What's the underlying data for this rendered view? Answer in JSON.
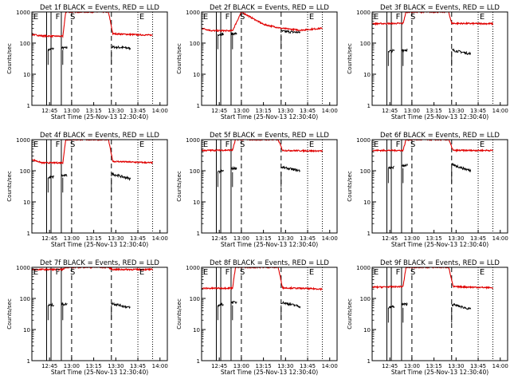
{
  "figure": {
    "x_ticks": [
      "12:45",
      "13:00",
      "13:15",
      "13:30",
      "13:45",
      "14:00"
    ],
    "y_ticks": [
      "1",
      "10",
      "100",
      "1000"
    ],
    "xlabel": "Start Time (25-Nov-13 12:30:40)",
    "ylabel": "Counts/sec",
    "marker_letters": [
      "E",
      "F",
      "S",
      "E"
    ]
  },
  "chart_data": [
    {
      "type": "line",
      "title": "Det 1f BLACK = Events, RED = LLD",
      "xlabel": "Start Time (25-Nov-13 12:30:40)",
      "ylabel": "Counts/sec",
      "ylim": [
        1,
        1000
      ],
      "yscale": "log",
      "x_ticks": [
        "12:45",
        "13:00",
        "13:15",
        "13:30",
        "13:45",
        "14:00"
      ],
      "series": [
        {
          "name": "Events",
          "color": "#000000",
          "values": [
            {
              "t": "12:44",
              "y": 60
            },
            {
              "t": "12:46",
              "y": 65
            },
            {
              "t": "12:54",
              "y": 70
            },
            {
              "t": "13:27",
              "y": 75
            },
            {
              "t": "13:35",
              "y": 72
            },
            {
              "t": "13:40",
              "y": 68
            }
          ]
        },
        {
          "name": "LLD",
          "color": "#e00000",
          "values": [
            {
              "t": "12:33",
              "y": 190
            },
            {
              "t": "12:40",
              "y": 170
            },
            {
              "t": "12:54",
              "y": 165
            },
            {
              "t": "12:56",
              "y": 1000
            },
            {
              "t": "13:25",
              "y": 1000
            },
            {
              "t": "13:28",
              "y": 200
            },
            {
              "t": "13:45",
              "y": 185
            },
            {
              "t": "13:55",
              "y": 180
            }
          ]
        }
      ]
    },
    {
      "type": "line",
      "title": "Det 2f BLACK = Events, RED = LLD",
      "xlabel": "Start Time (25-Nov-13 12:30:40)",
      "ylabel": "Counts/sec",
      "ylim": [
        1,
        1000
      ],
      "yscale": "log",
      "x_ticks": [
        "12:45",
        "13:00",
        "13:15",
        "13:30",
        "13:45",
        "14:00"
      ],
      "series": [
        {
          "name": "Events",
          "color": "#000000",
          "values": [
            {
              "t": "12:44",
              "y": 190
            },
            {
              "t": "12:54",
              "y": 200
            },
            {
              "t": "13:27",
              "y": 240
            },
            {
              "t": "13:40",
              "y": 220
            }
          ]
        },
        {
          "name": "LLD",
          "color": "#e00000",
          "values": [
            {
              "t": "12:33",
              "y": 300
            },
            {
              "t": "12:40",
              "y": 250
            },
            {
              "t": "12:54",
              "y": 250
            },
            {
              "t": "13:00",
              "y": 1000
            },
            {
              "t": "13:15",
              "y": 400
            },
            {
              "t": "13:27",
              "y": 300
            },
            {
              "t": "13:40",
              "y": 260
            },
            {
              "t": "13:55",
              "y": 300
            }
          ]
        }
      ]
    },
    {
      "type": "line",
      "title": "Det 3f BLACK = Events, RED = LLD",
      "xlabel": "Start Time (25-Nov-13 12:30:40)",
      "ylabel": "Counts/sec",
      "ylim": [
        1,
        1000
      ],
      "yscale": "log",
      "x_ticks": [
        "12:45",
        "13:00",
        "13:15",
        "13:30",
        "13:45",
        "14:00"
      ],
      "series": [
        {
          "name": "Events",
          "color": "#000000",
          "values": [
            {
              "t": "12:44",
              "y": 55
            },
            {
              "t": "12:54",
              "y": 60
            },
            {
              "t": "13:27",
              "y": 60
            },
            {
              "t": "13:40",
              "y": 45
            }
          ]
        },
        {
          "name": "LLD",
          "color": "#e00000",
          "values": [
            {
              "t": "12:33",
              "y": 420
            },
            {
              "t": "12:54",
              "y": 430
            },
            {
              "t": "12:56",
              "y": 1000
            },
            {
              "t": "13:25",
              "y": 1000
            },
            {
              "t": "13:27",
              "y": 430
            },
            {
              "t": "13:55",
              "y": 420
            }
          ]
        }
      ]
    },
    {
      "type": "line",
      "title": "Det 4f BLACK = Events, RED = LLD",
      "xlabel": "Start Time (25-Nov-13 12:30:40)",
      "ylabel": "Counts/sec",
      "ylim": [
        1,
        1000
      ],
      "yscale": "log",
      "x_ticks": [
        "12:45",
        "13:00",
        "13:15",
        "13:30",
        "13:45",
        "14:00"
      ],
      "series": [
        {
          "name": "Events",
          "color": "#000000",
          "values": [
            {
              "t": "12:44",
              "y": 60
            },
            {
              "t": "12:54",
              "y": 70
            },
            {
              "t": "13:27",
              "y": 80
            },
            {
              "t": "13:40",
              "y": 55
            }
          ]
        },
        {
          "name": "LLD",
          "color": "#e00000",
          "values": [
            {
              "t": "12:33",
              "y": 230
            },
            {
              "t": "12:40",
              "y": 180
            },
            {
              "t": "12:54",
              "y": 180
            },
            {
              "t": "12:56",
              "y": 1000
            },
            {
              "t": "13:25",
              "y": 1000
            },
            {
              "t": "13:28",
              "y": 200
            },
            {
              "t": "13:55",
              "y": 180
            }
          ]
        }
      ]
    },
    {
      "type": "line",
      "title": "Det 5f BLACK = Events, RED = LLD",
      "xlabel": "Start Time (25-Nov-13 12:30:40)",
      "ylabel": "Counts/sec",
      "ylim": [
        1,
        1000
      ],
      "yscale": "log",
      "x_ticks": [
        "12:45",
        "13:00",
        "13:15",
        "13:30",
        "13:45",
        "14:00"
      ],
      "series": [
        {
          "name": "Events",
          "color": "#000000",
          "values": [
            {
              "t": "12:44",
              "y": 90
            },
            {
              "t": "12:54",
              "y": 120
            },
            {
              "t": "13:27",
              "y": 130
            },
            {
              "t": "13:40",
              "y": 100
            }
          ]
        },
        {
          "name": "LLD",
          "color": "#e00000",
          "values": [
            {
              "t": "12:33",
              "y": 450
            },
            {
              "t": "12:54",
              "y": 460
            },
            {
              "t": "12:56",
              "y": 1000
            },
            {
              "t": "13:25",
              "y": 1000
            },
            {
              "t": "13:28",
              "y": 450
            },
            {
              "t": "13:55",
              "y": 430
            }
          ]
        }
      ]
    },
    {
      "type": "line",
      "title": "Det 6f BLACK = Events, RED = LLD",
      "xlabel": "Start Time (25-Nov-13 12:30:40)",
      "ylabel": "Counts/sec",
      "ylim": [
        1,
        1000
      ],
      "yscale": "log",
      "x_ticks": [
        "12:45",
        "13:00",
        "13:15",
        "13:30",
        "13:45",
        "14:00"
      ],
      "series": [
        {
          "name": "Events",
          "color": "#000000",
          "values": [
            {
              "t": "12:44",
              "y": 120
            },
            {
              "t": "12:54",
              "y": 150
            },
            {
              "t": "13:27",
              "y": 160
            },
            {
              "t": "13:40",
              "y": 100
            }
          ]
        },
        {
          "name": "LLD",
          "color": "#e00000",
          "values": [
            {
              "t": "12:33",
              "y": 450
            },
            {
              "t": "12:54",
              "y": 450
            },
            {
              "t": "12:56",
              "y": 1000
            },
            {
              "t": "13:25",
              "y": 1000
            },
            {
              "t": "13:28",
              "y": 450
            },
            {
              "t": "13:55",
              "y": 450
            }
          ]
        }
      ]
    },
    {
      "type": "line",
      "title": "Det 7f BLACK = Events, RED = LLD",
      "xlabel": "Start Time (25-Nov-13 12:30:40)",
      "ylabel": "Counts/sec",
      "ylim": [
        1,
        1000
      ],
      "yscale": "log",
      "x_ticks": [
        "12:45",
        "13:00",
        "13:15",
        "13:30",
        "13:45",
        "14:00"
      ],
      "series": [
        {
          "name": "Events",
          "color": "#000000",
          "values": [
            {
              "t": "12:44",
              "y": 60
            },
            {
              "t": "12:54",
              "y": 65
            },
            {
              "t": "13:27",
              "y": 70
            },
            {
              "t": "13:40",
              "y": 50
            }
          ]
        },
        {
          "name": "LLD",
          "color": "#e00000",
          "values": [
            {
              "t": "12:33",
              "y": 850
            },
            {
              "t": "12:54",
              "y": 850
            },
            {
              "t": "12:56",
              "y": 1000
            },
            {
              "t": "13:25",
              "y": 1000
            },
            {
              "t": "13:28",
              "y": 850
            },
            {
              "t": "13:55",
              "y": 850
            }
          ]
        }
      ]
    },
    {
      "type": "line",
      "title": "Det 8f BLACK = Events, RED = LLD",
      "xlabel": "Start Time (25-Nov-13 12:30:40)",
      "ylabel": "Counts/sec",
      "ylim": [
        1,
        1000
      ],
      "yscale": "log",
      "x_ticks": [
        "12:45",
        "13:00",
        "13:15",
        "13:30",
        "13:45",
        "14:00"
      ],
      "series": [
        {
          "name": "Events",
          "color": "#000000",
          "values": [
            {
              "t": "12:44",
              "y": 60
            },
            {
              "t": "12:54",
              "y": 75
            },
            {
              "t": "13:27",
              "y": 75
            },
            {
              "t": "13:40",
              "y": 55
            }
          ]
        },
        {
          "name": "LLD",
          "color": "#e00000",
          "values": [
            {
              "t": "12:33",
              "y": 210
            },
            {
              "t": "12:54",
              "y": 215
            },
            {
              "t": "12:56",
              "y": 1000
            },
            {
              "t": "13:25",
              "y": 1000
            },
            {
              "t": "13:28",
              "y": 220
            },
            {
              "t": "13:55",
              "y": 200
            }
          ]
        }
      ]
    },
    {
      "type": "line",
      "title": "Det 9f BLACK = Events, RED = LLD",
      "xlabel": "Start Time (25-Nov-13 12:30:40)",
      "ylabel": "Counts/sec",
      "ylim": [
        1,
        1000
      ],
      "yscale": "log",
      "x_ticks": [
        "12:45",
        "13:00",
        "13:15",
        "13:30",
        "13:45",
        "14:00"
      ],
      "series": [
        {
          "name": "Events",
          "color": "#000000",
          "values": [
            {
              "t": "12:44",
              "y": 50
            },
            {
              "t": "12:54",
              "y": 65
            },
            {
              "t": "13:27",
              "y": 65
            },
            {
              "t": "13:40",
              "y": 45
            }
          ]
        },
        {
          "name": "LLD",
          "color": "#e00000",
          "values": [
            {
              "t": "12:33",
              "y": 230
            },
            {
              "t": "12:54",
              "y": 240
            },
            {
              "t": "12:56",
              "y": 1000
            },
            {
              "t": "13:25",
              "y": 1000
            },
            {
              "t": "13:28",
              "y": 240
            },
            {
              "t": "13:55",
              "y": 220
            }
          ]
        }
      ]
    }
  ]
}
